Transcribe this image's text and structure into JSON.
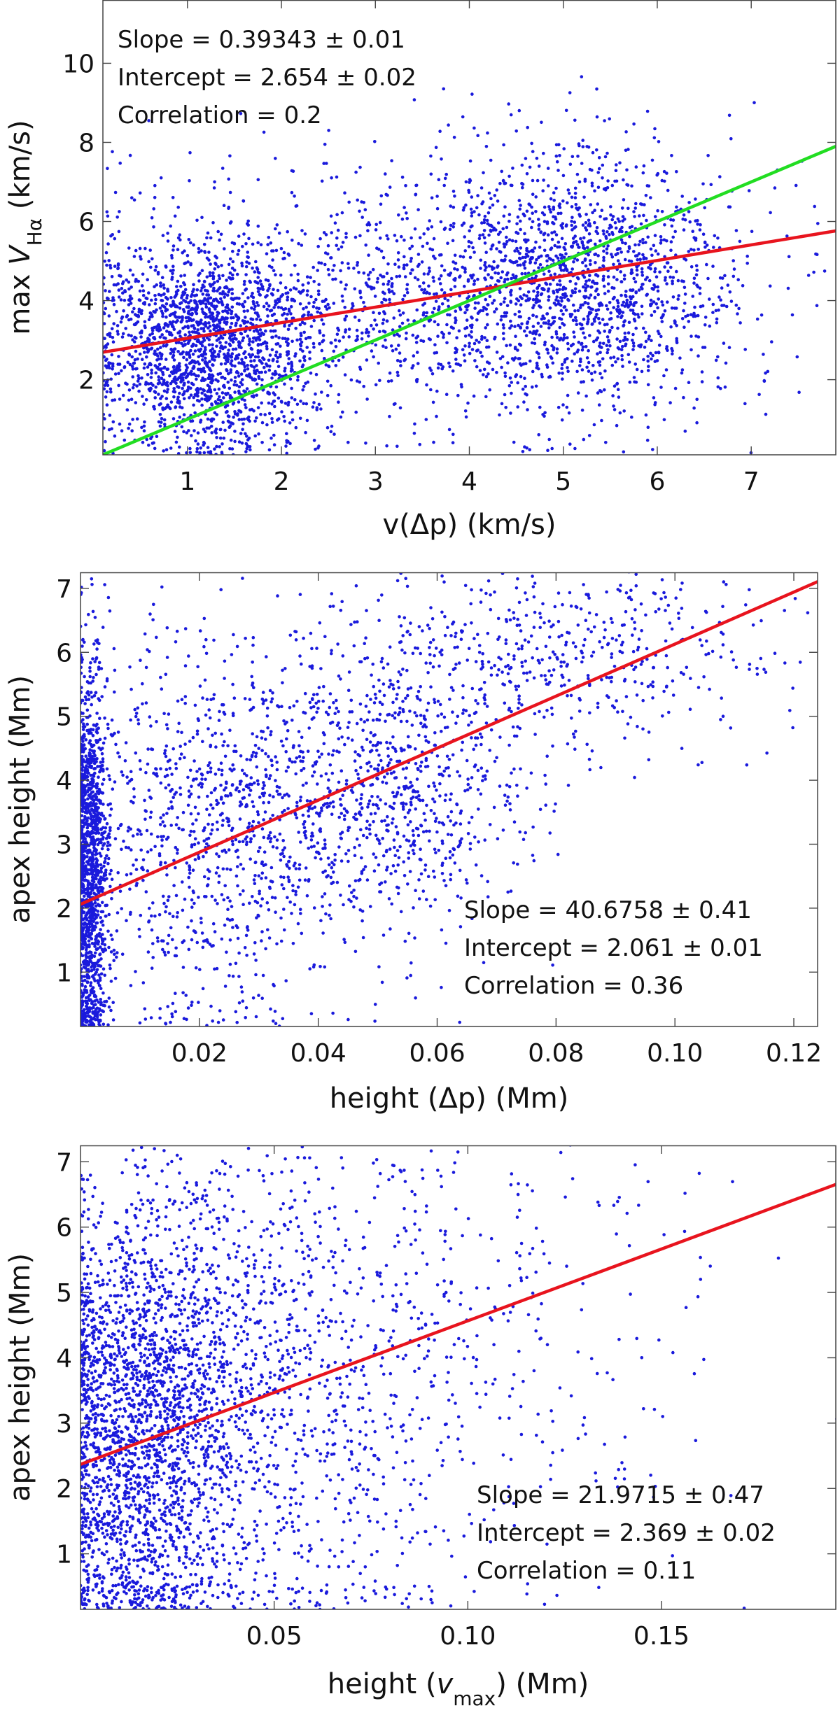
{
  "chart_data": [
    {
      "id": "p1",
      "type": "scatter",
      "xlabel": "v(Δp) (km/s)",
      "ylabel": {
        "prefix": "max ",
        "italic": "V",
        "sub": "Hα",
        "suffix": " (km/s)"
      },
      "xlim": [
        0.1,
        7.9
      ],
      "ylim": [
        0.1,
        11.6
      ],
      "xticks": [
        1,
        2,
        3,
        4,
        5,
        6,
        7
      ],
      "yticks": [
        2,
        4,
        6,
        8,
        10
      ],
      "stats": [
        {
          "label": "Slope",
          "value": "0.39343",
          "err": "0.01"
        },
        {
          "label": "Intercept",
          "value": "2.654",
          "err": "0.02"
        },
        {
          "label": "Correlation",
          "value": "0.2"
        }
      ],
      "fit_lines": [
        {
          "name": "fit",
          "color": "#e8141e",
          "slope": 0.39343,
          "intercept": 2.654
        },
        {
          "name": "one-to-one",
          "color": "#22dd22",
          "slope": 1.0,
          "intercept": 0.0
        }
      ],
      "point_color": "#1a1adc",
      "n_points": 4200,
      "clusters": [
        {
          "weight": 0.38,
          "mx": 1.2,
          "sx": 0.55,
          "my": 2.8,
          "sy": 1.3
        },
        {
          "weight": 0.34,
          "mx": 5.2,
          "sx": 0.85,
          "my": 4.5,
          "sy": 1.6
        },
        {
          "weight": 0.28,
          "mx": 3.0,
          "sx": 1.6,
          "my": 4.0,
          "sy": 1.7
        }
      ]
    },
    {
      "id": "p2",
      "type": "scatter",
      "xlabel": "height (Δp) (Mm)",
      "ylabel": {
        "prefix": "apex height (Mm)",
        "italic": "",
        "sub": "",
        "suffix": ""
      },
      "xlim": [
        0.0,
        0.124
      ],
      "ylim": [
        0.15,
        7.25
      ],
      "xticks": [
        0.02,
        0.04,
        0.06,
        0.08,
        0.1,
        0.12
      ],
      "xtick_labels": [
        "0.02",
        "0.04",
        "0.06",
        "0.08",
        "0.10",
        "0.12"
      ],
      "yticks": [
        1,
        2,
        3,
        4,
        5,
        6,
        7
      ],
      "stats": [
        {
          "label": "Slope",
          "value": "40.6758",
          "err": "0.41"
        },
        {
          "label": "Intercept",
          "value": "2.061",
          "err": "0.01"
        },
        {
          "label": "Correlation",
          "value": "0.36"
        }
      ],
      "fit_lines": [
        {
          "name": "fit",
          "color": "#e8141e",
          "slope": 40.6758,
          "intercept": 2.061
        }
      ],
      "point_color": "#1a1adc",
      "n_points": 3600,
      "clusters": [
        {
          "weight": 0.35,
          "mx": 0.0015,
          "sx": 0.0015,
          "my": 2.6,
          "sy": 1.6
        },
        {
          "weight": 0.25,
          "mx": 0.02,
          "sx": 0.012,
          "my": 3.2,
          "sy": 1.5
        },
        {
          "weight": 0.25,
          "mx": 0.05,
          "sx": 0.012,
          "my": 3.8,
          "sy": 1.2
        },
        {
          "weight": 0.15,
          "mx": 0.08,
          "sx": 0.02,
          "my": 6.0,
          "sy": 0.8
        }
      ]
    },
    {
      "id": "p3",
      "type": "scatter",
      "xlabel": {
        "prefix": "height (",
        "italic": "v",
        "sub": "max",
        "suffix": ") (Mm)"
      },
      "ylabel": {
        "prefix": "apex height (Mm)",
        "italic": "",
        "sub": "",
        "suffix": ""
      },
      "xlim": [
        0.0,
        0.195
      ],
      "ylim": [
        0.15,
        7.25
      ],
      "xticks": [
        0.05,
        0.1,
        0.15
      ],
      "xtick_labels": [
        "0.05",
        "0.10",
        "0.15"
      ],
      "yticks": [
        1,
        2,
        3,
        4,
        5,
        6,
        7
      ],
      "stats": [
        {
          "label": "Slope",
          "value": "21.9715",
          "err": "0.47"
        },
        {
          "label": "Intercept",
          "value": "2.369",
          "err": "0.02"
        },
        {
          "label": "Correlation",
          "value": "0.11"
        }
      ],
      "fit_lines": [
        {
          "name": "fit",
          "color": "#e8141e",
          "slope": 21.9715,
          "intercept": 2.369
        }
      ],
      "point_color": "#1a1adc",
      "n_points": 3600,
      "clusters": [
        {
          "weight": 0.55,
          "mx": 0.015,
          "sx": 0.012,
          "my": 2.8,
          "sy": 1.7
        },
        {
          "weight": 0.35,
          "mx": 0.045,
          "sx": 0.025,
          "my": 3.6,
          "sy": 2.0
        },
        {
          "weight": 0.1,
          "mx": 0.1,
          "sx": 0.035,
          "my": 4.5,
          "sy": 2.0
        }
      ]
    }
  ]
}
